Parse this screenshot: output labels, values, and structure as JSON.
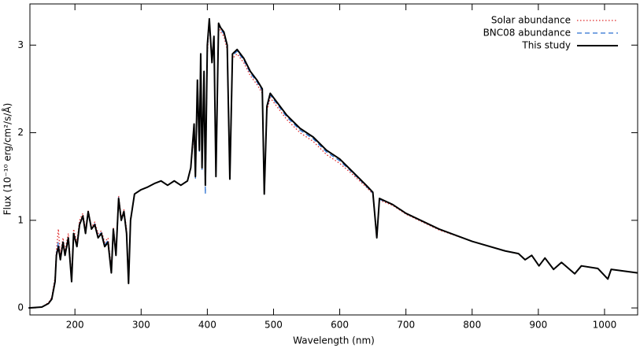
{
  "chart_data": {
    "type": "line",
    "xlabel": "Wavelength (nm)",
    "ylabel": "Flux (10⁻¹⁰ erg/cm²/s/Å)",
    "x": [
      130,
      150,
      160,
      165,
      170,
      172,
      175,
      178,
      182,
      185,
      190,
      195,
      198,
      203,
      207,
      212,
      216,
      220,
      225,
      230,
      235,
      240,
      245,
      250,
      255,
      258,
      262,
      266,
      270,
      274,
      278,
      281,
      284,
      290,
      300,
      310,
      320,
      330,
      340,
      350,
      360,
      370,
      375,
      380,
      382,
      385,
      388,
      390,
      392,
      395,
      397,
      400,
      403,
      407,
      410,
      413,
      417,
      420,
      425,
      430,
      434,
      438,
      445,
      455,
      465,
      475,
      483,
      486,
      490,
      495,
      505,
      520,
      540,
      560,
      580,
      600,
      620,
      640,
      650,
      656,
      660,
      680,
      700,
      750,
      800,
      850,
      870,
      880,
      890,
      901,
      910,
      923,
      935,
      955,
      965,
      990,
      1005,
      1010,
      1030,
      1050
    ],
    "series": [
      {
        "name": "Solar abundance",
        "color": "#e02828",
        "style": "dotted",
        "values": [
          0,
          0.01,
          0.06,
          0.12,
          0.35,
          0.65,
          0.9,
          0.6,
          0.8,
          0.65,
          0.85,
          0.35,
          0.9,
          0.75,
          1.0,
          1.08,
          0.9,
          1.12,
          0.92,
          0.98,
          0.85,
          0.88,
          0.75,
          0.8,
          0.45,
          0.92,
          0.65,
          1.28,
          1.02,
          1.12,
          0.9,
          0.3,
          1.02,
          1.3,
          1.35,
          1.38,
          1.42,
          1.45,
          1.4,
          1.45,
          1.4,
          1.45,
          1.6,
          2.0,
          1.5,
          2.5,
          1.8,
          2.8,
          1.6,
          2.6,
          1.4,
          2.9,
          3.28,
          2.85,
          3.1,
          1.5,
          3.25,
          3.15,
          3.1,
          2.95,
          1.47,
          2.85,
          2.9,
          2.8,
          2.65,
          2.55,
          2.45,
          1.3,
          2.25,
          2.4,
          2.3,
          2.15,
          2.0,
          1.9,
          1.75,
          1.65,
          1.52,
          1.38,
          1.3,
          0.8,
          1.23,
          1.17,
          1.07,
          0.89,
          0.76,
          0.65,
          0.62,
          0.55,
          0.6,
          0.48,
          0.57,
          0.44,
          0.52,
          0.39,
          0.48,
          0.45,
          0.33,
          0.44,
          0.42,
          0.4
        ]
      },
      {
        "name": "BNC08 abundance",
        "color": "#2a6fd0",
        "style": "dashed",
        "values": [
          0,
          0.01,
          0.05,
          0.11,
          0.32,
          0.62,
          0.75,
          0.56,
          0.76,
          0.61,
          0.81,
          0.31,
          0.86,
          0.71,
          0.96,
          1.05,
          0.86,
          1.1,
          0.9,
          0.96,
          0.82,
          0.86,
          0.72,
          0.77,
          0.42,
          0.9,
          0.62,
          1.26,
          1.0,
          1.1,
          0.86,
          0.29,
          1.0,
          1.3,
          1.35,
          1.38,
          1.42,
          1.45,
          1.4,
          1.45,
          1.4,
          1.45,
          1.6,
          2.05,
          1.48,
          2.55,
          1.78,
          2.85,
          1.58,
          2.65,
          1.3,
          2.95,
          3.3,
          2.82,
          3.1,
          1.5,
          3.25,
          3.18,
          3.13,
          2.98,
          1.47,
          2.88,
          2.93,
          2.83,
          2.68,
          2.58,
          2.48,
          1.3,
          2.28,
          2.43,
          2.33,
          2.18,
          2.03,
          1.93,
          1.78,
          1.68,
          1.54,
          1.39,
          1.31,
          0.8,
          1.24,
          1.18,
          1.08,
          0.9,
          0.76,
          0.65,
          0.62,
          0.55,
          0.6,
          0.48,
          0.57,
          0.44,
          0.52,
          0.39,
          0.48,
          0.45,
          0.33,
          0.44,
          0.42,
          0.4
        ]
      },
      {
        "name": "This study",
        "color": "#000000",
        "style": "solid",
        "values": [
          0,
          0.01,
          0.05,
          0.1,
          0.3,
          0.6,
          0.7,
          0.55,
          0.75,
          0.6,
          0.8,
          0.3,
          0.85,
          0.7,
          0.95,
          1.05,
          0.85,
          1.1,
          0.9,
          0.95,
          0.8,
          0.85,
          0.7,
          0.75,
          0.4,
          0.9,
          0.6,
          1.25,
          1.0,
          1.1,
          0.85,
          0.28,
          1.0,
          1.3,
          1.35,
          1.38,
          1.42,
          1.45,
          1.4,
          1.45,
          1.4,
          1.45,
          1.6,
          2.1,
          1.5,
          2.6,
          1.8,
          2.9,
          1.6,
          2.7,
          1.4,
          3.0,
          3.3,
          2.8,
          3.1,
          1.5,
          3.25,
          3.2,
          3.15,
          3.0,
          1.47,
          2.9,
          2.95,
          2.85,
          2.7,
          2.6,
          2.5,
          1.3,
          2.3,
          2.45,
          2.35,
          2.2,
          2.05,
          1.95,
          1.8,
          1.7,
          1.55,
          1.4,
          1.32,
          0.8,
          1.25,
          1.18,
          1.08,
          0.9,
          0.76,
          0.65,
          0.62,
          0.55,
          0.6,
          0.48,
          0.57,
          0.44,
          0.52,
          0.39,
          0.48,
          0.45,
          0.33,
          0.44,
          0.42,
          0.4
        ]
      }
    ],
    "xlim": [
      132,
      1050
    ],
    "ylim": [
      -0.08,
      3.47
    ],
    "xticks": [
      200,
      300,
      400,
      500,
      600,
      700,
      800,
      900,
      1000
    ],
    "yticks": [
      0,
      1,
      2,
      3
    ],
    "legend": "upper right"
  }
}
